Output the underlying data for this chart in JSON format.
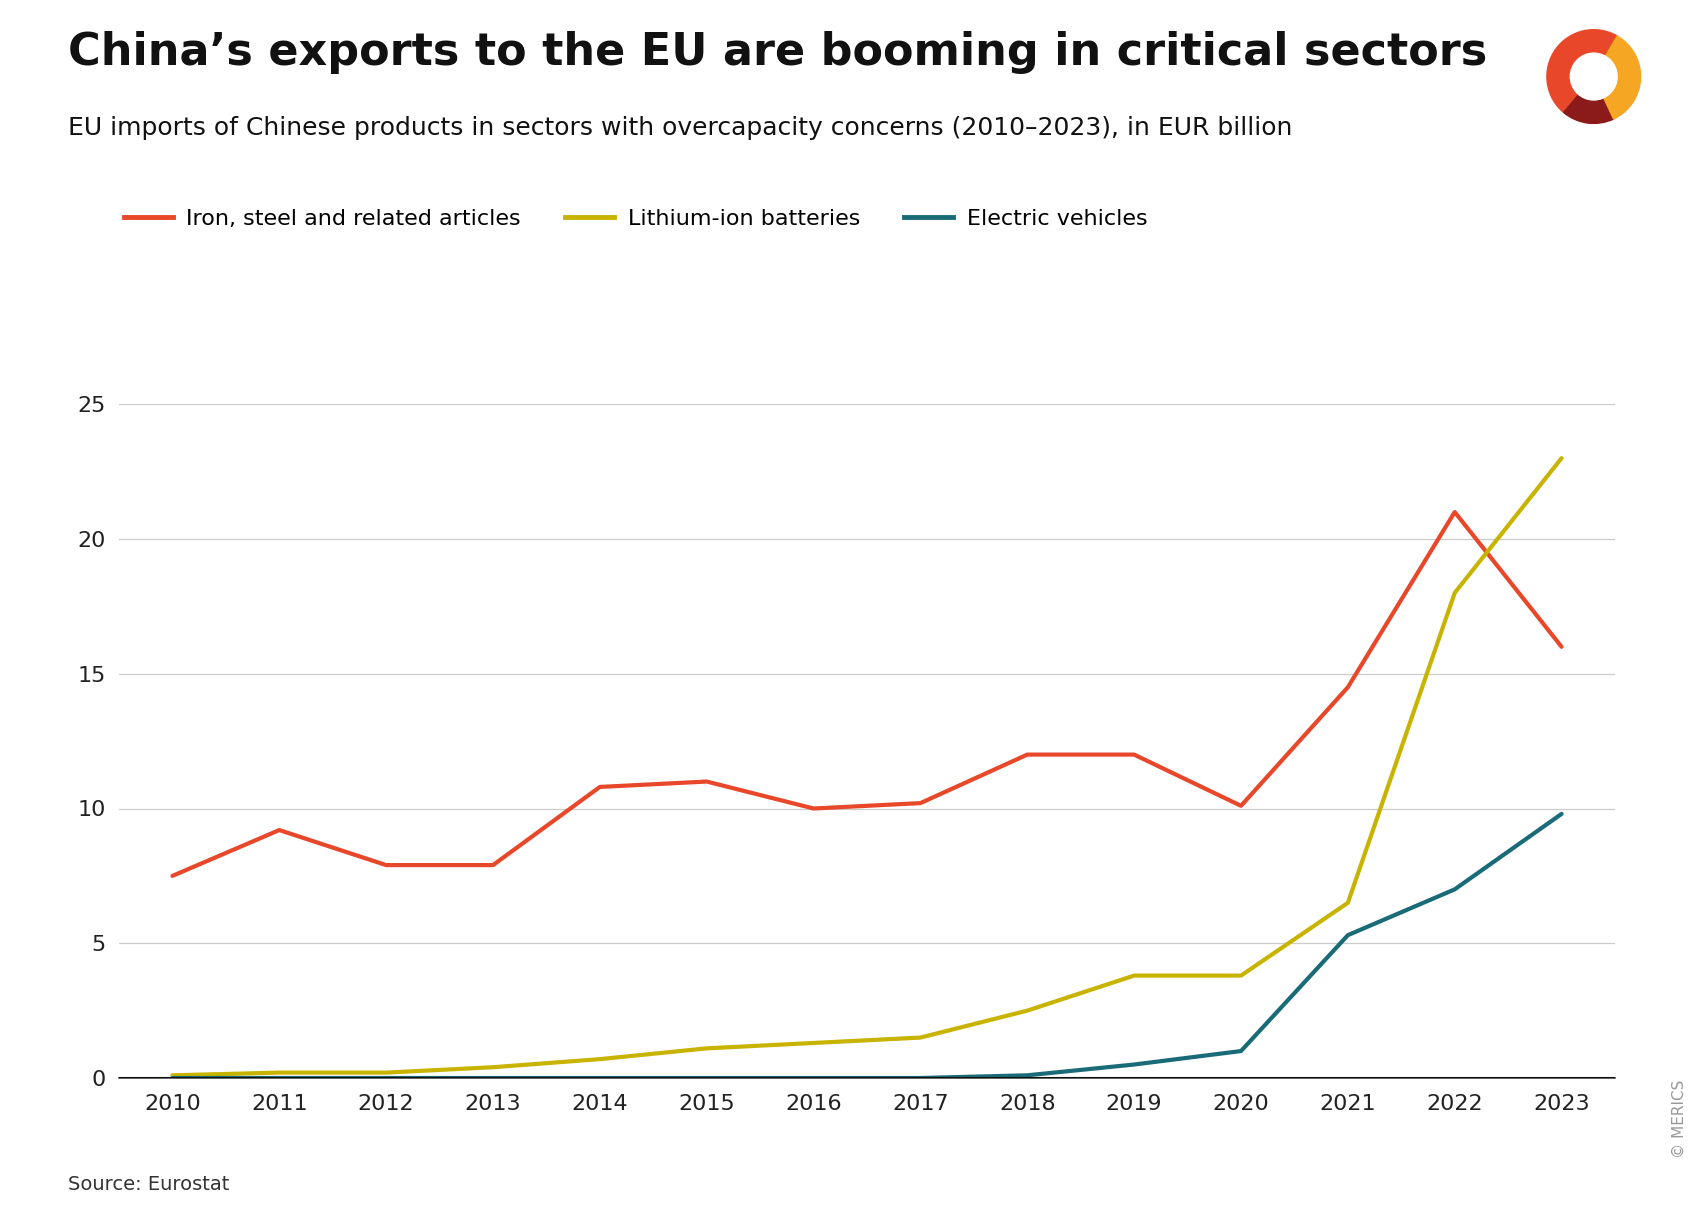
{
  "title": "China’s exports to the EU are booming in critical sectors",
  "subtitle": "EU imports of Chinese products in sectors with overcapacity concerns (2010–2023), in EUR billion",
  "source": "Source: Eurostat",
  "copyright": "© MERICS",
  "years": [
    2010,
    2011,
    2012,
    2013,
    2014,
    2015,
    2016,
    2017,
    2018,
    2019,
    2020,
    2021,
    2022,
    2023
  ],
  "iron_steel": [
    7.5,
    9.2,
    7.9,
    7.9,
    10.8,
    11.0,
    10.0,
    10.2,
    12.0,
    12.0,
    10.1,
    14.5,
    21.0,
    16.0
  ],
  "lithium_batteries": [
    0.1,
    0.2,
    0.2,
    0.4,
    0.7,
    1.1,
    1.3,
    1.5,
    2.5,
    3.8,
    3.8,
    6.5,
    18.0,
    23.0
  ],
  "electric_vehicles": [
    0.0,
    0.0,
    0.0,
    0.0,
    0.0,
    0.0,
    0.0,
    0.0,
    0.1,
    0.5,
    1.0,
    5.3,
    7.0,
    9.8
  ],
  "iron_color": "#E8472A",
  "lithium_color": "#C8B400",
  "ev_color": "#1A6B78",
  "ylim": [
    0,
    25
  ],
  "yticks": [
    0,
    5,
    10,
    15,
    20,
    25
  ],
  "background_color": "#FFFFFF",
  "title_fontsize": 32,
  "subtitle_fontsize": 18,
  "legend_fontsize": 16,
  "tick_fontsize": 16,
  "line_width": 3.0,
  "legend_labels": [
    "Iron, steel and related articles",
    "Lithium-ion batteries",
    "Electric vehicles"
  ],
  "logo_wedge1_color": "#E8472A",
  "logo_wedge2_color": "#8B1A1A",
  "logo_wedge3_color": "#F5A623"
}
